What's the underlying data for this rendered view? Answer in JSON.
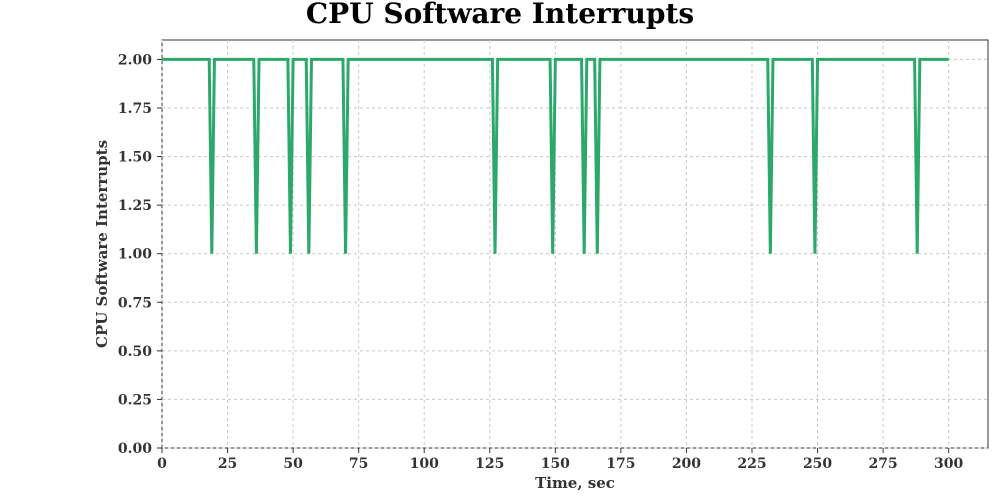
{
  "chart_data": {
    "type": "line",
    "title": "CPU Software Interrupts",
    "xlabel": "Time, sec",
    "ylabel": "CPU Software Interrupts",
    "xlim": [
      0,
      315
    ],
    "ylim": [
      0,
      2.1
    ],
    "x_ticks": [
      0,
      25,
      50,
      75,
      100,
      125,
      150,
      175,
      200,
      225,
      250,
      275,
      300
    ],
    "y_ticks": [
      0.0,
      0.25,
      0.5,
      0.75,
      1.0,
      1.25,
      1.5,
      1.75,
      2.0
    ],
    "x_tick_labels": [
      "0",
      "25",
      "50",
      "75",
      "100",
      "125",
      "150",
      "175",
      "200",
      "225",
      "250",
      "275",
      "300"
    ],
    "y_tick_labels": [
      "0.00",
      "0.25",
      "0.50",
      "0.75",
      "1.00",
      "1.25",
      "1.50",
      "1.75",
      "2.00"
    ],
    "grid": true,
    "series": [
      {
        "color": "#2ca86a",
        "x": [
          0,
          18,
          19,
          20,
          35,
          36,
          37,
          48,
          49,
          50,
          55,
          56,
          57,
          69,
          70,
          71,
          126,
          127,
          128,
          148,
          149,
          150,
          160,
          161,
          162,
          165,
          166,
          167,
          231,
          232,
          233,
          248,
          249,
          250,
          287,
          288,
          289,
          300
        ],
        "y": [
          2,
          2,
          1,
          2,
          2,
          1,
          2,
          2,
          1,
          2,
          2,
          1,
          2,
          2,
          1,
          2,
          2,
          1,
          2,
          2,
          1,
          2,
          2,
          1,
          2,
          2,
          1,
          2,
          2,
          1,
          2,
          2,
          1,
          2,
          2,
          1,
          2,
          2
        ]
      }
    ]
  }
}
